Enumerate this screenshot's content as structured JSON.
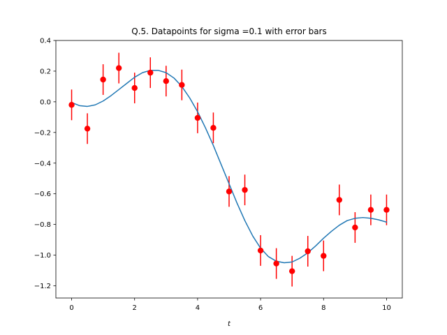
{
  "chart_data": {
    "type": "scatter",
    "title": "Q.5. Datapoints for sigma =0.1 with error bars",
    "xlabel": "t",
    "ylabel": "",
    "xlim": [
      -0.5,
      10.5
    ],
    "ylim": [
      -1.28,
      0.4
    ],
    "xticks": [
      0,
      2,
      4,
      6,
      8,
      10
    ],
    "xtick_labels": [
      "0",
      "2",
      "4",
      "6",
      "8",
      "10"
    ],
    "yticks": [
      -1.2,
      -1.0,
      -0.8,
      -0.6,
      -0.4,
      -0.2,
      0.0,
      0.2,
      0.4
    ],
    "ytick_labels": [
      "−1.2",
      "−1.0",
      "−0.8",
      "−0.6",
      "−0.4",
      "−0.2",
      "0.0",
      "0.2",
      "0.4"
    ],
    "grid": false,
    "series": [
      {
        "kind": "errorbar",
        "color": "#ff0000",
        "error": 0.1,
        "x": [
          0,
          0.5,
          1,
          1.5,
          2,
          2.5,
          3,
          3.5,
          4,
          4.5,
          5,
          5.5,
          6,
          6.5,
          7,
          7.5,
          8,
          8.5,
          9,
          9.5,
          10
        ],
        "y": [
          -0.02,
          -0.175,
          0.145,
          0.22,
          0.09,
          0.19,
          0.135,
          0.11,
          -0.105,
          -0.17,
          -0.585,
          -0.575,
          -0.97,
          -1.055,
          -1.105,
          -0.975,
          -1.005,
          -0.64,
          -0.82,
          -0.705,
          -0.705
        ]
      },
      {
        "kind": "line",
        "color": "#1f77b4",
        "x": [
          0,
          0.25,
          0.5,
          0.75,
          1,
          1.25,
          1.5,
          1.75,
          2,
          2.25,
          2.5,
          2.75,
          3,
          3.25,
          3.5,
          3.75,
          4,
          4.25,
          4.5,
          4.75,
          5,
          5.25,
          5.5,
          5.75,
          6,
          6.25,
          6.5,
          6.75,
          7,
          7.25,
          7.5,
          7.75,
          8,
          8.25,
          8.5,
          8.75,
          9,
          9.25,
          9.5,
          9.75,
          10
        ],
        "y": [
          -0.005,
          -0.025,
          -0.03,
          -0.02,
          0.005,
          0.04,
          0.08,
          0.12,
          0.16,
          0.19,
          0.205,
          0.205,
          0.19,
          0.155,
          0.1,
          0.025,
          -0.065,
          -0.17,
          -0.285,
          -0.41,
          -0.535,
          -0.66,
          -0.775,
          -0.875,
          -0.955,
          -1.01,
          -1.04,
          -1.05,
          -1.045,
          -1.02,
          -0.985,
          -0.94,
          -0.89,
          -0.845,
          -0.805,
          -0.775,
          -0.76,
          -0.755,
          -0.76,
          -0.77,
          -0.785
        ]
      }
    ]
  }
}
